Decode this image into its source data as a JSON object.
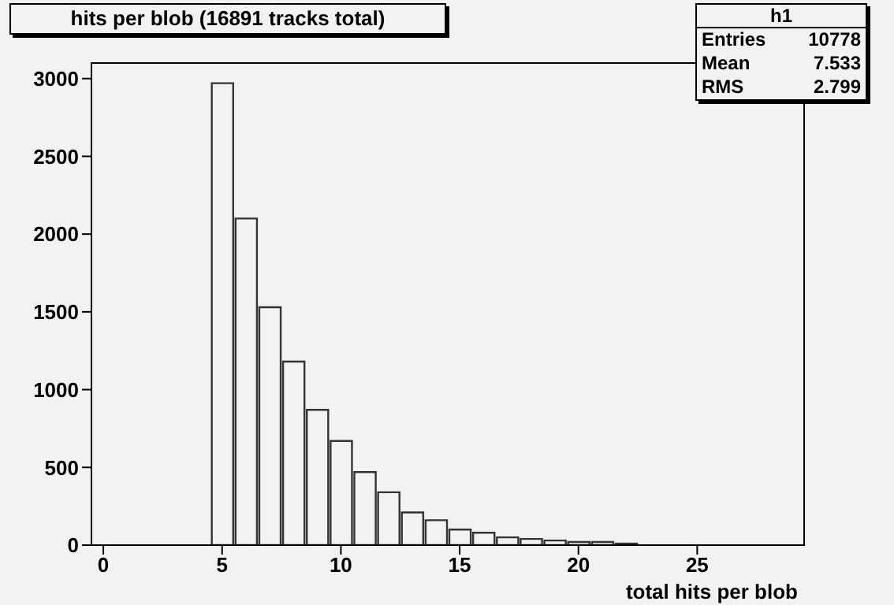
{
  "chart_data": {
    "type": "histogram",
    "title": "hits per blob (16891 tracks total)",
    "xlabel": "total hits per blob",
    "bins": [
      -0.5,
      0.5,
      1.5,
      2.5,
      3.5,
      4.5,
      5.5,
      6.5,
      7.5,
      8.5,
      9.5,
      10.5,
      11.5,
      12.5,
      13.5,
      14.5,
      15.5,
      16.5,
      17.5,
      18.5,
      19.5,
      20.5,
      21.5,
      22.5,
      23.5,
      24.5,
      25.5,
      26.5,
      27.5,
      28.5,
      29.5
    ],
    "values": [
      0,
      0,
      0,
      0,
      0,
      2970,
      2100,
      1530,
      1180,
      870,
      670,
      470,
      340,
      210,
      160,
      100,
      80,
      50,
      40,
      30,
      20,
      20,
      10,
      0,
      0,
      0,
      0,
      0,
      0,
      0
    ],
    "color": "#333333",
    "xlim": [
      -0.5,
      29.5
    ],
    "xticks": [
      0,
      5,
      10,
      15,
      20,
      25
    ],
    "ylim": [
      0,
      3100
    ],
    "yticks": [
      0,
      500,
      1000,
      1500,
      2000,
      2500,
      3000
    ],
    "annotations": [
      "h1",
      "Entries",
      "10778",
      "Mean",
      "7.533",
      "RMS",
      "2.799"
    ]
  }
}
